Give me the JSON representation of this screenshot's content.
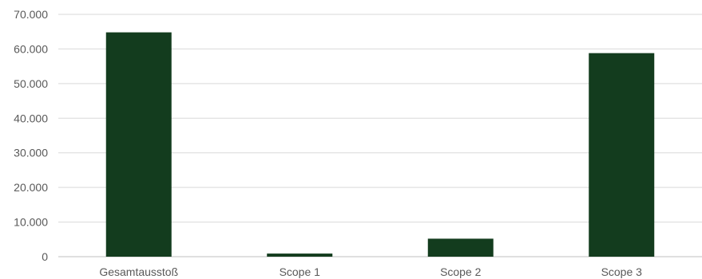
{
  "chart_data": {
    "type": "bar",
    "title": "",
    "xlabel": "",
    "ylabel": "",
    "categories": [
      "Gesamtausstoß",
      "Scope 1",
      "Scope 2",
      "Scope 3"
    ],
    "values": [
      64800,
      900,
      5200,
      58800
    ],
    "ylim": [
      0,
      70000
    ],
    "yticks": [
      0,
      10000,
      20000,
      30000,
      40000,
      50000,
      60000,
      70000
    ],
    "ytick_labels": [
      "0",
      "10.000",
      "20.000",
      "30.000",
      "40.000",
      "50.000",
      "60.000",
      "70.000"
    ],
    "grid": true,
    "legend": "none",
    "bar_color": "#133c1e"
  }
}
